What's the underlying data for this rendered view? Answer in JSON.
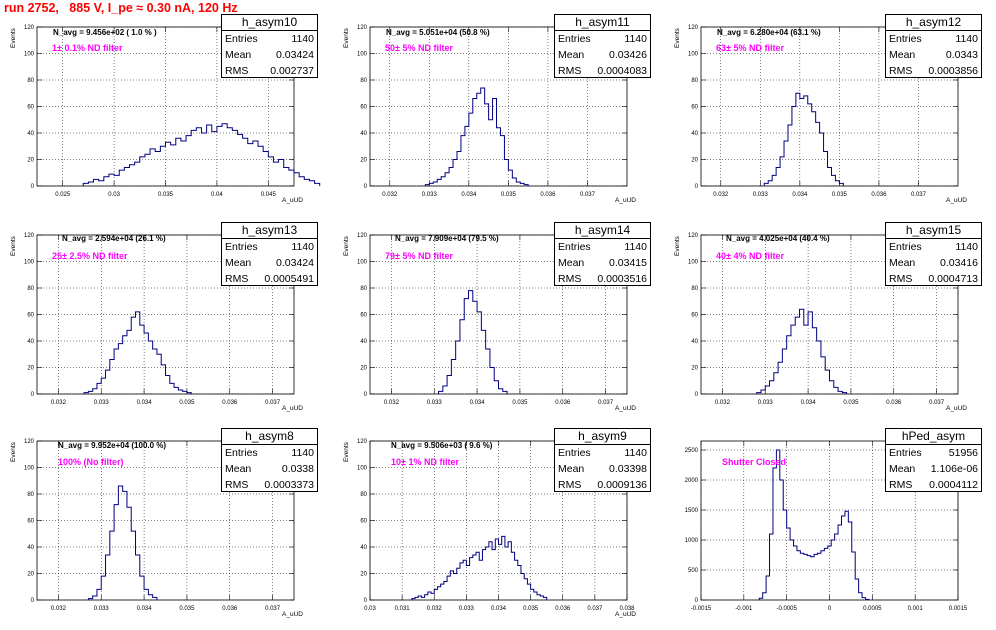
{
  "canvas_title": "run 2752,   885 V, I_pe ≈ 0.30 nA, 120 Hz",
  "colors": {
    "title": "#ff0000",
    "hist_line": "#000080",
    "filter_text": "#ff00ff",
    "grid": "#000000"
  },
  "chart_data": [
    {
      "type": "bar",
      "name": "h_asym10",
      "stats": {
        "entries": "1140",
        "mean": "0.03424",
        "rms": "0.002737"
      },
      "labels": {
        "entries": "Entries",
        "mean": "Mean",
        "rms": "RMS"
      },
      "navg": "N_avg = 9.456e+02 ( 1.0 % )",
      "filter": "1± 0.1% ND filter",
      "xlabel": "A_uUD",
      "ylabel": "Events",
      "xlim": [
        0.0225,
        0.0475
      ],
      "ylim": [
        0,
        120
      ],
      "xticks": [
        "0.025",
        "0.03",
        "0.035",
        "0.04",
        "0.045"
      ],
      "xtick_values": [
        0.025,
        0.03,
        0.035,
        0.04,
        0.045
      ],
      "yticks": [
        0,
        20,
        40,
        60,
        80,
        100,
        120
      ],
      "grid": true,
      "bins": {
        "x0": 0.027,
        "width": 0.0005,
        "values": [
          2,
          3,
          5,
          4,
          7,
          9,
          8,
          12,
          14,
          16,
          18,
          22,
          24,
          28,
          26,
          30,
          33,
          31,
          36,
          34,
          38,
          42,
          44,
          40,
          46,
          41,
          45,
          47,
          44,
          42,
          39,
          36,
          32,
          34,
          30,
          26,
          22,
          18,
          20,
          14,
          12,
          10,
          7,
          5,
          4,
          2
        ]
      }
    },
    {
      "type": "bar",
      "name": "h_asym11",
      "stats": {
        "entries": "1140",
        "mean": "0.03426",
        "rms": "0.0004083"
      },
      "labels": {
        "entries": "Entries",
        "mean": "Mean",
        "rms": "RMS"
      },
      "navg": "N_avg = 5.051e+04 (50.8 %)",
      "filter": "50± 5% ND filter",
      "xlabel": "A_uUD",
      "ylabel": "Events",
      "xlim": [
        0.0315,
        0.038
      ],
      "ylim": [
        0,
        120
      ],
      "xticks": [
        "0.032",
        "0.033",
        "0.034",
        "0.035",
        "0.036",
        "0.037"
      ],
      "xtick_values": [
        0.032,
        0.033,
        0.034,
        0.035,
        0.036,
        0.037
      ],
      "yticks": [
        0,
        20,
        40,
        60,
        80,
        100,
        120
      ],
      "grid": true,
      "bins": {
        "x0": 0.0329,
        "width": 0.0001,
        "values": [
          1,
          2,
          3,
          5,
          7,
          10,
          14,
          20,
          26,
          38,
          45,
          55,
          66,
          70,
          74,
          62,
          50,
          66,
          44,
          38,
          20,
          12,
          6,
          3,
          2,
          1
        ]
      }
    },
    {
      "type": "bar",
      "name": "h_asym12",
      "stats": {
        "entries": "1140",
        "mean": "0.0343",
        "rms": "0.0003856"
      },
      "labels": {
        "entries": "Entries",
        "mean": "Mean",
        "rms": "RMS"
      },
      "navg": "N_avg = 6.280e+04 (63.1 %)",
      "filter": "63± 5% ND filter",
      "xlabel": "A_uUD",
      "ylabel": "Events",
      "xlim": [
        0.0315,
        0.038
      ],
      "ylim": [
        0,
        120
      ],
      "xticks": [
        "0.032",
        "0.033",
        "0.034",
        "0.035",
        "0.036",
        "0.037"
      ],
      "xtick_values": [
        0.032,
        0.033,
        0.034,
        0.035,
        0.036,
        0.037
      ],
      "yticks": [
        0,
        20,
        40,
        60,
        80,
        100,
        120
      ],
      "grid": true,
      "bins": {
        "x0": 0.0331,
        "width": 0.0001,
        "values": [
          2,
          4,
          8,
          14,
          22,
          34,
          46,
          60,
          70,
          66,
          68,
          62,
          56,
          48,
          40,
          26,
          14,
          8,
          4,
          2
        ]
      }
    },
    {
      "type": "bar",
      "name": "h_asym13",
      "stats": {
        "entries": "1140",
        "mean": "0.03424",
        "rms": "0.0005491"
      },
      "labels": {
        "entries": "Entries",
        "mean": "Mean",
        "rms": "RMS"
      },
      "navg": "N_avg = 2.594e+04 (26.1 %)",
      "filter": "25± 2.5% ND filter",
      "xlabel": "A_uUD",
      "ylabel": "Events",
      "xlim": [
        0.0315,
        0.0375
      ],
      "ylim": [
        0,
        120
      ],
      "xticks": [
        "0.032",
        "0.033",
        "0.034",
        "0.035",
        "0.036",
        "0.037"
      ],
      "xtick_values": [
        0.032,
        0.033,
        0.034,
        0.035,
        0.036,
        0.037
      ],
      "yticks": [
        0,
        20,
        40,
        60,
        80,
        100,
        120
      ],
      "grid": true,
      "bins": {
        "x0": 0.0326,
        "width": 0.0001,
        "values": [
          1,
          2,
          4,
          8,
          12,
          18,
          26,
          34,
          38,
          44,
          48,
          58,
          62,
          52,
          46,
          40,
          34,
          30,
          22,
          14,
          8,
          5,
          3,
          2,
          1
        ]
      }
    },
    {
      "type": "bar",
      "name": "h_asym14",
      "stats": {
        "entries": "1140",
        "mean": "0.03415",
        "rms": "0.0003516"
      },
      "labels": {
        "entries": "Entries",
        "mean": "Mean",
        "rms": "RMS"
      },
      "navg": "N_avg = 7.909e+04 (79.5 %)",
      "filter": "79± 5% ND filter",
      "xlabel": "A_uUD",
      "ylabel": "Events",
      "xlim": [
        0.0315,
        0.0375
      ],
      "ylim": [
        0,
        120
      ],
      "xticks": [
        "0.032",
        "0.033",
        "0.034",
        "0.035",
        "0.036",
        "0.037"
      ],
      "xtick_values": [
        0.032,
        0.033,
        0.034,
        0.035,
        0.036,
        0.037
      ],
      "yticks": [
        0,
        20,
        40,
        60,
        80,
        100,
        120
      ],
      "grid": true,
      "bins": {
        "x0": 0.0331,
        "width": 0.0001,
        "values": [
          2,
          6,
          14,
          26,
          40,
          56,
          72,
          78,
          70,
          62,
          48,
          34,
          20,
          10,
          4,
          2
        ]
      }
    },
    {
      "type": "bar",
      "name": "h_asym15",
      "stats": {
        "entries": "1140",
        "mean": "0.03416",
        "rms": "0.0004713"
      },
      "labels": {
        "entries": "Entries",
        "mean": "Mean",
        "rms": "RMS"
      },
      "navg": "N_avg = 4.025e+04 (40.4 %)",
      "filter": "40± 4% ND filter",
      "xlabel": "A_uUD",
      "ylabel": "Events",
      "xlim": [
        0.0315,
        0.0375
      ],
      "ylim": [
        0,
        120
      ],
      "xticks": [
        "0.032",
        "0.033",
        "0.034",
        "0.035",
        "0.036",
        "0.037"
      ],
      "xtick_values": [
        0.032,
        0.033,
        0.034,
        0.035,
        0.036,
        0.037
      ],
      "yticks": [
        0,
        20,
        40,
        60,
        80,
        100,
        120
      ],
      "grid": true,
      "bins": {
        "x0": 0.0328,
        "width": 0.0001,
        "values": [
          1,
          3,
          6,
          10,
          16,
          24,
          34,
          44,
          52,
          58,
          64,
          52,
          62,
          50,
          40,
          28,
          18,
          10,
          5,
          2,
          1
        ]
      }
    },
    {
      "type": "bar",
      "name": "h_asym8",
      "stats": {
        "entries": "1140",
        "mean": "0.0338",
        "rms": "0.0003373"
      },
      "labels": {
        "entries": "Entries",
        "mean": "Mean",
        "rms": "RMS"
      },
      "navg": "N_avg = 9.952e+04 (100.0 %)",
      "filter": "100% (No filter)",
      "xlabel": "A_uUD",
      "ylabel": "Events",
      "xlim": [
        0.0315,
        0.0375
      ],
      "ylim": [
        0,
        120
      ],
      "xticks": [
        "0.032",
        "0.033",
        "0.034",
        "0.035",
        "0.036",
        "0.037"
      ],
      "xtick_values": [
        0.032,
        0.033,
        0.034,
        0.035,
        0.036,
        0.037
      ],
      "yticks": [
        0,
        20,
        40,
        60,
        80,
        100,
        120
      ],
      "grid": true,
      "bins": {
        "x0": 0.0327,
        "width": 0.0001,
        "values": [
          1,
          3,
          8,
          18,
          34,
          52,
          72,
          86,
          82,
          70,
          52,
          34,
          18,
          8,
          4,
          2
        ]
      }
    },
    {
      "type": "bar",
      "name": "h_asym9",
      "stats": {
        "entries": "1140",
        "mean": "0.03398",
        "rms": "0.0009136"
      },
      "labels": {
        "entries": "Entries",
        "mean": "Mean",
        "rms": "RMS"
      },
      "navg": "N_avg = 9.506e+03 ( 9.6 %)",
      "filter": "10± 1% ND filter",
      "xlabel": "A_uUD",
      "ylabel": "Events",
      "xlim": [
        0.03,
        0.038
      ],
      "ylim": [
        0,
        120
      ],
      "xticks": [
        "0.03",
        "0.031",
        "0.032",
        "0.033",
        "0.034",
        "0.035",
        "0.036",
        "0.037",
        "0.038"
      ],
      "xtick_values": [
        0.03,
        0.031,
        0.032,
        0.033,
        0.034,
        0.035,
        0.036,
        0.037,
        0.038
      ],
      "yticks": [
        0,
        20,
        40,
        60,
        80,
        100,
        120
      ],
      "grid": true,
      "bins": {
        "x0": 0.0313,
        "width": 0.0001,
        "values": [
          1,
          2,
          3,
          2,
          4,
          6,
          5,
          8,
          10,
          12,
          14,
          18,
          22,
          20,
          24,
          28,
          30,
          26,
          32,
          34,
          36,
          30,
          38,
          40,
          44,
          38,
          46,
          42,
          48,
          40,
          44,
          36,
          30,
          26,
          20,
          16,
          12,
          8,
          6,
          4,
          3,
          2
        ]
      }
    },
    {
      "type": "bar",
      "name": "hPed_asym",
      "stats": {
        "entries": "51956",
        "mean": "1.106e-06",
        "rms": "0.0004112"
      },
      "labels": {
        "entries": "Entries",
        "mean": "Mean",
        "rms": "RMS"
      },
      "navg": "",
      "filter": "Shutter Closed",
      "xlabel": "",
      "ylabel": "",
      "xlim": [
        -0.0015,
        0.0015
      ],
      "ylim": [
        0,
        2650
      ],
      "xticks": [
        "-0.0015",
        "-0.001",
        "-0.0005",
        "0",
        "0.0005",
        "0.001",
        "0.0015"
      ],
      "xtick_values": [
        -0.0015,
        -0.001,
        -0.0005,
        0,
        0.0005,
        0.001,
        0.0015
      ],
      "yticks": [
        0,
        500,
        1000,
        1500,
        2000,
        2500
      ],
      "grid": true,
      "bins": {
        "x0": -0.00082,
        "width": 4e-05,
        "values": [
          30,
          120,
          400,
          1100,
          2200,
          2500,
          2000,
          1500,
          1200,
          1000,
          900,
          820,
          780,
          760,
          740,
          720,
          760,
          780,
          820,
          860,
          900,
          1000,
          1100,
          1250,
          1400,
          1480,
          1300,
          800,
          350,
          120,
          40,
          10
        ]
      }
    }
  ]
}
